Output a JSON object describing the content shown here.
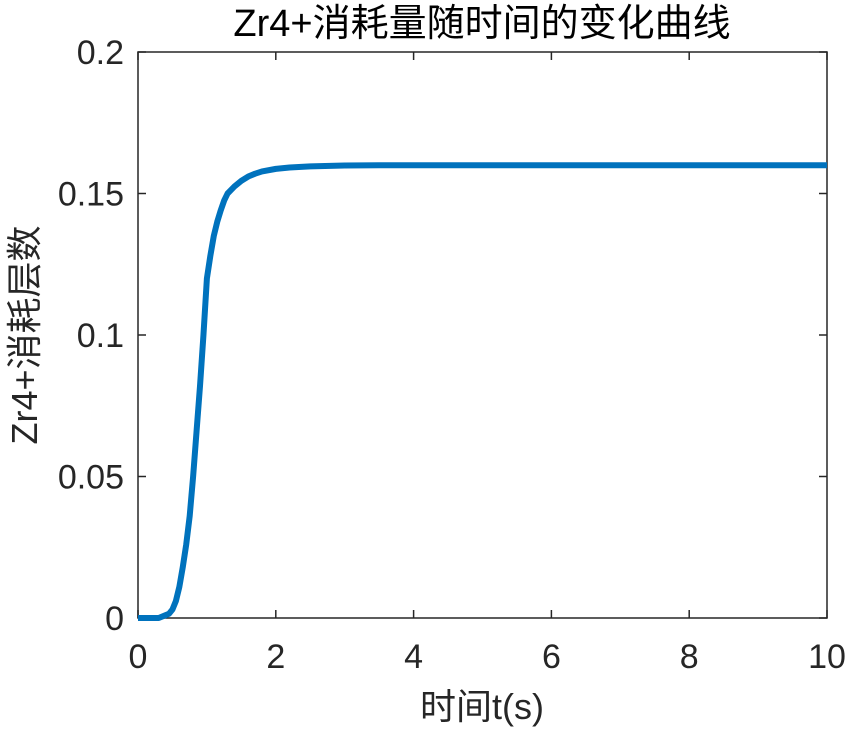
{
  "chart_data": {
    "type": "line",
    "title": "Zr4+消耗量随时间的变化曲线",
    "xlabel": "时间t(s)",
    "ylabel": "Zr4+消耗层数",
    "xlim": [
      0,
      10
    ],
    "ylim": [
      0,
      0.2
    ],
    "xticks": [
      0,
      2,
      4,
      6,
      8,
      10
    ],
    "yticks": [
      0,
      0.05,
      0.1,
      0.15,
      0.2
    ],
    "xtick_labels": [
      "0",
      "2",
      "4",
      "6",
      "8",
      "10"
    ],
    "ytick_labels": [
      "0",
      "0.05",
      "0.1",
      "0.15",
      "0.2"
    ],
    "grid": false,
    "series": [
      {
        "color": "#0072BD",
        "x": [
          0,
          0.1,
          0.2,
          0.3,
          0.4,
          0.45,
          0.5,
          0.55,
          0.6,
          0.65,
          0.7,
          0.75,
          0.8,
          0.85,
          0.9,
          0.95,
          1.0,
          1.05,
          1.1,
          1.15,
          1.2,
          1.25,
          1.3,
          1.4,
          1.5,
          1.6,
          1.7,
          1.8,
          2.0,
          2.2,
          2.5,
          3.0,
          3.5,
          4.0,
          5.0,
          6.0,
          7.0,
          8.0,
          9.0,
          10.0
        ],
        "y": [
          0,
          0,
          0,
          0,
          0.001,
          0.0015,
          0.003,
          0.006,
          0.011,
          0.018,
          0.026,
          0.036,
          0.05,
          0.066,
          0.082,
          0.1,
          0.12,
          0.128,
          0.135,
          0.14,
          0.144,
          0.1475,
          0.15,
          0.1525,
          0.1545,
          0.156,
          0.157,
          0.1578,
          0.1587,
          0.1592,
          0.1596,
          0.1599,
          0.16,
          0.16,
          0.16,
          0.16,
          0.16,
          0.16,
          0.16,
          0.16
        ]
      }
    ]
  }
}
